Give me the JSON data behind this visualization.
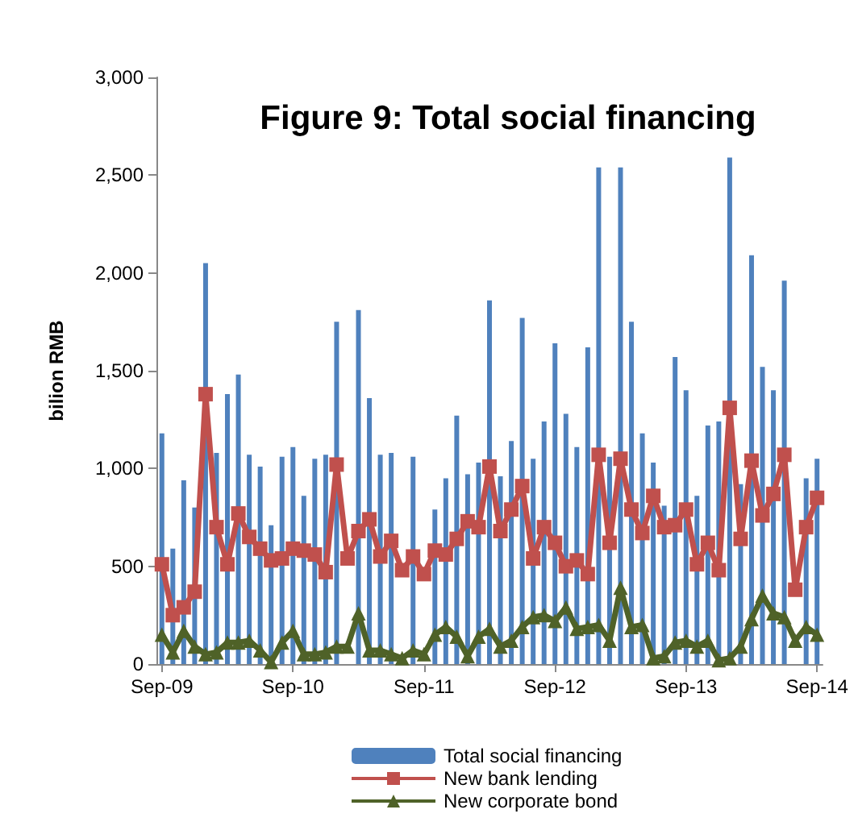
{
  "chart_data": {
    "type": "bar",
    "title": "Figure 9: Total social financing",
    "ylabel": "bilion RMB",
    "categories": [
      "Sep-09",
      null,
      null,
      null,
      null,
      null,
      null,
      null,
      null,
      null,
      null,
      null,
      "Sep-10",
      null,
      null,
      null,
      null,
      null,
      null,
      null,
      null,
      null,
      null,
      null,
      "Sep-11",
      null,
      null,
      null,
      null,
      null,
      null,
      null,
      null,
      null,
      null,
      null,
      "Sep-12",
      null,
      null,
      null,
      null,
      null,
      null,
      null,
      null,
      null,
      null,
      null,
      "Sep-13",
      null,
      null,
      null,
      null,
      null,
      null,
      null,
      null,
      null,
      null,
      null,
      "Sep-14"
    ],
    "series": [
      {
        "name": "Total social financing",
        "color": "#4f81bd",
        "values": [
          1180,
          590,
          940,
          800,
          2050,
          1080,
          1380,
          1480,
          1070,
          1010,
          710,
          1060,
          1110,
          860,
          1050,
          1070,
          1750,
          null,
          1810,
          1360,
          1070,
          1080,
          null,
          1060,
          null,
          790,
          950,
          1270,
          970,
          1030,
          1860,
          960,
          1140,
          1770,
          1050,
          1240,
          1640,
          1280,
          1110,
          1620,
          2540,
          1060,
          2540,
          1750,
          1180,
          1030,
          810,
          1570,
          1400,
          860,
          1220,
          1240,
          2590,
          920,
          2090,
          1520,
          1400,
          1960,
          null,
          950,
          1050
        ]
      },
      {
        "name": "New bank lending",
        "type": "line",
        "color": "#c0504d",
        "marker": "square",
        "values": [
          510,
          250,
          290,
          370,
          1380,
          700,
          510,
          770,
          650,
          590,
          530,
          540,
          590,
          580,
          560,
          470,
          1020,
          540,
          680,
          740,
          550,
          630,
          480,
          550,
          460,
          580,
          560,
          640,
          730,
          700,
          1010,
          680,
          790,
          910,
          540,
          700,
          620,
          500,
          530,
          460,
          1070,
          620,
          1050,
          790,
          670,
          860,
          700,
          710,
          790,
          510,
          620,
          480,
          1310,
          640,
          1040,
          760,
          870,
          1070,
          380,
          700,
          850
        ]
      },
      {
        "name": "New corporate bond",
        "type": "line",
        "color": "#4f6228",
        "marker": "triangle",
        "values": [
          150,
          60,
          170,
          90,
          50,
          60,
          110,
          110,
          120,
          70,
          10,
          110,
          170,
          50,
          50,
          60,
          90,
          90,
          260,
          70,
          70,
          50,
          30,
          70,
          50,
          150,
          190,
          140,
          40,
          140,
          180,
          90,
          120,
          190,
          240,
          250,
          220,
          290,
          180,
          190,
          200,
          120,
          390,
          190,
          200,
          30,
          40,
          110,
          120,
          90,
          120,
          20,
          30,
          90,
          230,
          350,
          260,
          240,
          120,
          190,
          150
        ]
      }
    ],
    "ylim": [
      0,
      3000
    ],
    "yticks": [
      0,
      500,
      {
        "value": 1000,
        "label": "1,000"
      },
      {
        "value": 1500,
        "label": "1,500"
      },
      {
        "value": 2000,
        "label": "2,000"
      },
      {
        "value": 2500,
        "label": "2,500"
      },
      {
        "value": 3000,
        "label": "3,000"
      }
    ],
    "grid": false,
    "legend": "bottom"
  }
}
